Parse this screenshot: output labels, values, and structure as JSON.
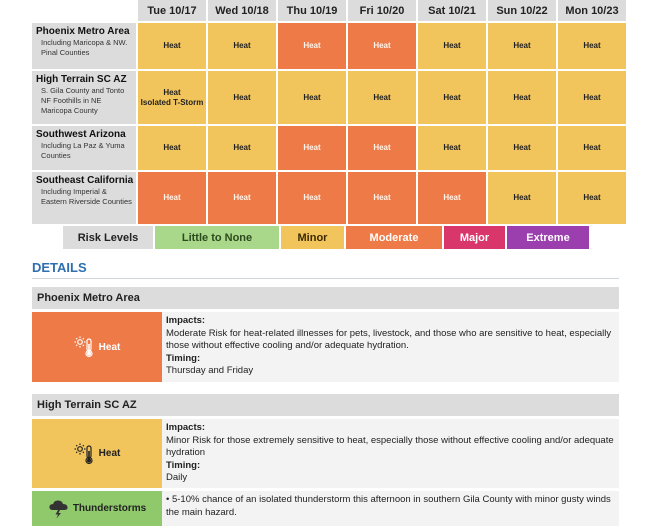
{
  "days": [
    "Tue 10/17",
    "Wed 10/18",
    "Thu 10/19",
    "Fri 10/20",
    "Sat 10/21",
    "Sun 10/22",
    "Mon 10/23"
  ],
  "regions": [
    {
      "name": "Phoenix Metro Area",
      "sub": "Including Maricopa & NW. Pinal Counties",
      "cells": [
        {
          "text": "Heat",
          "level": "minor"
        },
        {
          "text": "Heat",
          "level": "minor"
        },
        {
          "text": "Heat",
          "level": "moderate"
        },
        {
          "text": "Heat",
          "level": "moderate"
        },
        {
          "text": "Heat",
          "level": "minor"
        },
        {
          "text": "Heat",
          "level": "minor"
        },
        {
          "text": "Heat",
          "level": "minor"
        }
      ]
    },
    {
      "name": "High Terrain SC AZ",
      "sub": "S. Gila County and Tonto NF Foothills in NE Maricopa County",
      "cells": [
        {
          "text": "Heat",
          "text2": "Isolated T-Storm",
          "level": "minor"
        },
        {
          "text": "Heat",
          "level": "minor"
        },
        {
          "text": "Heat",
          "level": "minor"
        },
        {
          "text": "Heat",
          "level": "minor"
        },
        {
          "text": "Heat",
          "level": "minor"
        },
        {
          "text": "Heat",
          "level": "minor"
        },
        {
          "text": "Heat",
          "level": "minor"
        }
      ]
    },
    {
      "name": "Southwest Arizona",
      "sub": "Including La Paz & Yuma Counties",
      "cells": [
        {
          "text": "Heat",
          "level": "minor"
        },
        {
          "text": "Heat",
          "level": "minor"
        },
        {
          "text": "Heat",
          "level": "moderate"
        },
        {
          "text": "Heat",
          "level": "moderate"
        },
        {
          "text": "Heat",
          "level": "minor"
        },
        {
          "text": "Heat",
          "level": "minor"
        },
        {
          "text": "Heat",
          "level": "minor"
        }
      ]
    },
    {
      "name": "Southeast California",
      "sub": "Including Imperial & Eastern Riverside Counties",
      "cells": [
        {
          "text": "Heat",
          "level": "moderate"
        },
        {
          "text": "Heat",
          "level": "moderate"
        },
        {
          "text": "Heat",
          "level": "moderate"
        },
        {
          "text": "Heat",
          "level": "moderate"
        },
        {
          "text": "Heat",
          "level": "moderate"
        },
        {
          "text": "Heat",
          "level": "minor"
        },
        {
          "text": "Heat",
          "level": "minor"
        }
      ]
    }
  ],
  "legend": {
    "title": "Risk Levels",
    "items": [
      {
        "label": "Little to None",
        "color": "#a9d88a",
        "text_color": "#2d4a1e"
      },
      {
        "label": "Minor",
        "color": "#f2c45c",
        "text_color": "#3a2a00"
      },
      {
        "label": "Moderate",
        "color": "#ee7a48",
        "text_color": "#ffffff"
      },
      {
        "label": "Major",
        "color": "#d9376b",
        "text_color": "#ffffff"
      },
      {
        "label": "Extreme",
        "color": "#9b3faf",
        "text_color": "#ffffff"
      }
    ],
    "title_color": "#dcdcdc"
  },
  "colors": {
    "minor": "#f2c45c",
    "moderate": "#ee7a48",
    "thunder": "#8fc96b",
    "details_title": "#2f6fb0"
  },
  "details": {
    "title": "DETAILS",
    "sections": [
      {
        "region": "Phoenix Metro Area",
        "hazards": [
          {
            "name": "Heat",
            "icon": "thermometer-sun-icon",
            "level": "moderate",
            "impacts_label": "Impacts:",
            "impacts": "Moderate Risk for heat-related illnesses for pets, livestock, and those who are sensitive to heat, especially those without effective cooling and/or adequate hydration.",
            "timing_label": "Timing:",
            "timing": "Thursday and Friday"
          }
        ]
      },
      {
        "region": "High Terrain SC AZ",
        "hazards": [
          {
            "name": "Heat",
            "icon": "thermometer-sun-icon",
            "level": "minor",
            "impacts_label": "Impacts:",
            "impacts": "Minor Risk for those extremely sensitive to heat, especially those without effective cooling and/or adequate hydration",
            "timing_label": "Timing:",
            "timing": "Daily"
          },
          {
            "name": "Thunderstorms",
            "icon": "storm-cloud-icon",
            "level": "thunder",
            "text": "• 5-10% chance of an isolated thunderstorm this afternoon in southern Gila County with minor gusty winds the main hazard."
          }
        ]
      }
    ]
  }
}
